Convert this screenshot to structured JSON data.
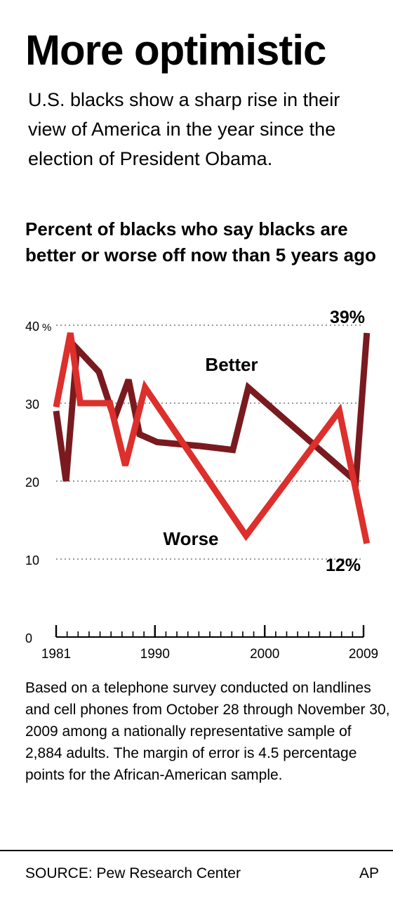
{
  "title": "More optimistic",
  "subtitle": "U.S. blacks show a sharp rise in their view of America in the year since the election of President Obama.",
  "chart_heading": "Percent of blacks who say blacks are better or worse off now than 5 years ago",
  "chart_data": {
    "type": "line",
    "y_ticks": [
      {
        "value": 40,
        "label": "40"
      },
      {
        "value": 30,
        "label": "30"
      },
      {
        "value": 20,
        "label": "20"
      },
      {
        "value": 10,
        "label": "10"
      },
      {
        "value": 0,
        "label": "0"
      }
    ],
    "y_unit_label": "%",
    "x_ticks": [
      {
        "value": 1981,
        "label": "1981"
      },
      {
        "value": 1990,
        "label": "1990"
      },
      {
        "value": 2000,
        "label": "2000"
      },
      {
        "value": 2009,
        "label": "2009"
      }
    ],
    "xlim": [
      1981,
      2009
    ],
    "ylim": [
      0,
      40
    ],
    "grid": true,
    "series": [
      {
        "name": "Better",
        "color": "#7a1a1f",
        "points": [
          [
            1981,
            29
          ],
          [
            1981.9,
            20
          ],
          [
            1982.9,
            37
          ],
          [
            1984.9,
            34
          ],
          [
            1986.3,
            28
          ],
          [
            1987.6,
            33
          ],
          [
            1988.6,
            26
          ],
          [
            1990.2,
            25
          ],
          [
            1994.1,
            24.5
          ],
          [
            1997.1,
            24
          ],
          [
            1998.5,
            32
          ],
          [
            2008.3,
            20
          ],
          [
            2009.3,
            39
          ]
        ]
      },
      {
        "name": "Worse",
        "color": "#dd2f2b",
        "points": [
          [
            1981,
            29.5
          ],
          [
            1982.3,
            39
          ],
          [
            1983.2,
            30
          ],
          [
            1985.9,
            30
          ],
          [
            1987.3,
            22
          ],
          [
            1989.1,
            32
          ],
          [
            1998.3,
            13
          ],
          [
            2006.8,
            29
          ],
          [
            2009.3,
            12
          ]
        ]
      }
    ],
    "annotations": [
      {
        "text": "39%",
        "series": "Better",
        "value": 39
      },
      {
        "text": "12%",
        "series": "Worse",
        "value": 12
      }
    ]
  },
  "note": "Based on a telephone survey conducted on landlines and cell phones from October 28 through November 30, 2009 among a nationally representative sample of 2,884 adults. The margin of error is 4.5 percentage points for the African-American sample.",
  "source": "SOURCE: Pew Research Center",
  "credit": "AP"
}
